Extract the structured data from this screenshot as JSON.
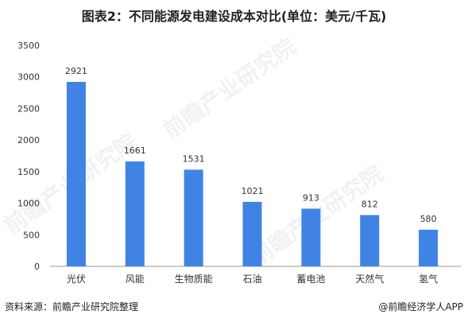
{
  "chart_data": {
    "type": "bar",
    "title": "图表2：不同能源发电建设成本对比(单位：美元/千瓦)",
    "categories": [
      "光伏",
      "风能",
      "生物质能",
      "石油",
      "蓄电池",
      "天然气",
      "氢气"
    ],
    "values": [
      2921,
      1661,
      1531,
      1021,
      913,
      812,
      580
    ],
    "ylim": [
      0,
      3500
    ],
    "yticks": [
      0,
      500,
      1000,
      1500,
      2000,
      2500,
      3000,
      3500
    ],
    "ytick_labels": [
      "0",
      "500",
      "1000",
      "1500",
      "2000",
      "2500",
      "3000",
      "3500"
    ],
    "grid": false,
    "bar_color": "#3f84e5"
  },
  "footer": {
    "source": "资料来源：前瞻产业研究院整理",
    "brand": "@前瞻经济学人APP"
  },
  "watermark": "前瞻产业研究院"
}
